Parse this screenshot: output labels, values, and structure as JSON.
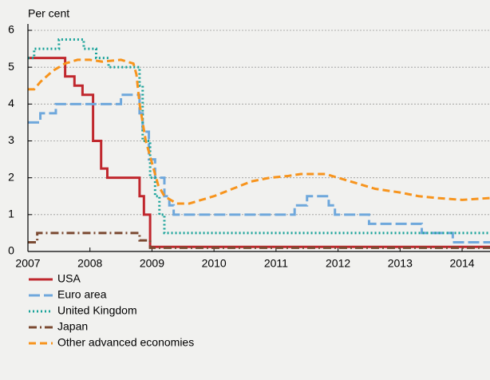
{
  "chart_data": {
    "type": "line",
    "ylabel": "Per cent",
    "xlim": [
      2007,
      2014.45
    ],
    "xticks": [
      2007,
      2008,
      2009,
      2010,
      2011,
      2012,
      2013,
      2014
    ],
    "ylim": [
      0,
      6
    ],
    "yticks": [
      0,
      1,
      2,
      3,
      4,
      5,
      6
    ],
    "grid": true,
    "legend": "bottom",
    "series": [
      {
        "name": "USA",
        "color": "#c0272d",
        "dash": "solid",
        "step": true,
        "x": [
          2007,
          2007.6,
          2007.75,
          2007.88,
          2008.05,
          2008.18,
          2008.28,
          2008.8,
          2008.87,
          2008.97,
          2014.45
        ],
        "values": [
          5.25,
          4.75,
          4.5,
          4.25,
          3.0,
          2.25,
          2.0,
          1.5,
          1.0,
          0.125,
          0.125
        ]
      },
      {
        "name": "Euro area",
        "color": "#6fa8dc",
        "dash": "long",
        "step": true,
        "x": [
          2007,
          2007.2,
          2007.45,
          2008.5,
          2008.8,
          2008.85,
          2008.95,
          2009.05,
          2009.2,
          2009.28,
          2009.35,
          2011.3,
          2011.5,
          2011.85,
          2011.95,
          2012.5,
          2013.35,
          2013.85,
          2014.45
        ],
        "values": [
          3.5,
          3.75,
          4.0,
          4.25,
          3.75,
          3.25,
          2.5,
          2.0,
          1.5,
          1.25,
          1.0,
          1.25,
          1.5,
          1.25,
          1.0,
          0.75,
          0.5,
          0.25,
          0.25
        ]
      },
      {
        "name": "United Kingdom",
        "color": "#1aa39a",
        "dash": "dot",
        "step": true,
        "x": [
          2007,
          2007.1,
          2007.5,
          2007.9,
          2008.1,
          2008.3,
          2008.8,
          2008.85,
          2008.97,
          2009.05,
          2009.12,
          2009.2,
          2014.45
        ],
        "values": [
          5.25,
          5.5,
          5.75,
          5.5,
          5.25,
          5.0,
          4.5,
          3.0,
          2.0,
          1.5,
          1.0,
          0.5,
          0.5
        ]
      },
      {
        "name": "Japan",
        "color": "#7b4a32",
        "dash": "dashdot",
        "step": true,
        "x": [
          2007,
          2007.15,
          2008.8,
          2008.97,
          2014.45
        ],
        "values": [
          0.25,
          0.5,
          0.3,
          0.1,
          0.1
        ]
      },
      {
        "name": "Other advanced economies",
        "color": "#f7941d",
        "dash": "dash",
        "step": false,
        "x": [
          2007,
          2007.1,
          2007.2,
          2007.4,
          2007.6,
          2007.8,
          2008.0,
          2008.2,
          2008.5,
          2008.7,
          2008.75,
          2008.8,
          2008.9,
          2009.0,
          2009.1,
          2009.2,
          2009.4,
          2009.6,
          2009.8,
          2010.0,
          2010.3,
          2010.6,
          2010.9,
          2011.2,
          2011.4,
          2011.8,
          2012.0,
          2012.3,
          2012.6,
          2013.0,
          2013.3,
          2013.6,
          2014.0,
          2014.45
        ],
        "values": [
          4.4,
          4.4,
          4.6,
          4.9,
          5.1,
          5.2,
          5.2,
          5.15,
          5.2,
          5.1,
          4.8,
          4.0,
          3.0,
          2.4,
          1.8,
          1.5,
          1.3,
          1.3,
          1.4,
          1.5,
          1.7,
          1.9,
          2.0,
          2.05,
          2.1,
          2.1,
          2.0,
          1.85,
          1.7,
          1.6,
          1.5,
          1.45,
          1.4,
          1.45
        ]
      }
    ]
  }
}
